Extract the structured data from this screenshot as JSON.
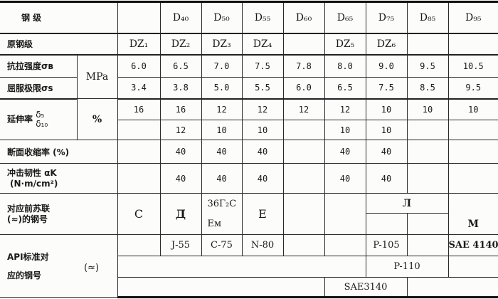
{
  "header": {
    "label": "钢          级",
    "grades": [
      "",
      "D₄₀",
      "D₅₀",
      "D₅₅",
      "D₆₀",
      "D₆₅",
      "D₇₅",
      "D₈₅",
      "D₉₅"
    ]
  },
  "original": {
    "label": "原钢级",
    "values": [
      "DZ₁",
      "DZ₂",
      "DZ₃",
      "DZ₄",
      "",
      "DZ₅",
      "DZ₆",
      "",
      ""
    ]
  },
  "strength_unit": "MPa",
  "tensile": {
    "label": "抗拉强度σʙ",
    "values": [
      "6.0",
      "6.5",
      "7.0",
      "7.5",
      "7.8",
      "8.0",
      "9.0",
      "9.5",
      "10.5"
    ]
  },
  "yield": {
    "label": "屈服极限σs",
    "values": [
      "3.4",
      "3.8",
      "5.0",
      "5.5",
      "6.0",
      "6.5",
      "7.5",
      "8.5",
      "9.5"
    ]
  },
  "elongation": {
    "label": "延伸率",
    "symbol_top": "δ₅",
    "symbol_bottom": "δ₁₀",
    "unit": "%",
    "d5": [
      "16",
      "16",
      "12",
      "12",
      "12",
      "12",
      "10",
      "10",
      "10"
    ],
    "d10": [
      "",
      "12",
      "10",
      "10",
      "",
      "10",
      "10",
      "",
      ""
    ]
  },
  "reduction": {
    "label": "断面收缩率 (%)",
    "values": [
      "",
      "40",
      "40",
      "40",
      "",
      "40",
      "40",
      "",
      ""
    ]
  },
  "impact": {
    "label": "冲击韧性  αK",
    "unit": "(N·m/cm²)",
    "values": [
      "",
      "40",
      "40",
      "40",
      "",
      "40",
      "40",
      "",
      ""
    ]
  },
  "soviet": {
    "label_line1": "对应前苏联",
    "label_line2": "(≈)的钢号",
    "values": [
      "C",
      "Д",
      "36Γ₂C",
      "E",
      "",
      ""
    ],
    "d50_second": "Eм",
    "d75_d85": "Л",
    "d95": "M"
  },
  "api": {
    "label_line1": "API标准对",
    "label_line2": "应的钢号",
    "approx": "(≈)",
    "row1": [
      "",
      "J-55",
      "C-75",
      "N-80",
      "",
      "",
      "P-105",
      "",
      "SAE 4140"
    ],
    "row2_d75_d85": "P-110",
    "row3_d65_d75": "SAE3140"
  }
}
